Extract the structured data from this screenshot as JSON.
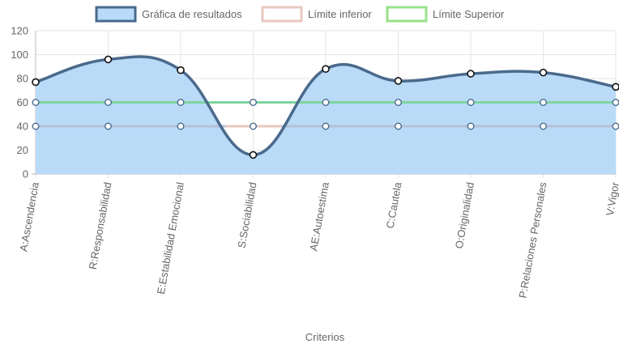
{
  "chart_data": {
    "type": "line",
    "title": "",
    "xlabel": "Criterios",
    "ylabel": "",
    "ylim": [
      0,
      120
    ],
    "yticks": [
      0,
      20,
      40,
      60,
      80,
      100,
      120
    ],
    "grid": true,
    "legend_position": "top-center",
    "categories": [
      "A:Ascendencia",
      "R:Responsabilidad",
      "E:Estabilidad Emocional",
      "S:Sociabilidad",
      "AE:Autoestima",
      "C:Cautela",
      "O:Originalidad",
      "P:Relaciones Personales",
      "V:Vigor"
    ],
    "series": [
      {
        "name": "Gráfica de resultados",
        "values": [
          77,
          96,
          87,
          16,
          88,
          78,
          84,
          85,
          73
        ],
        "line_color": "#4a6a8c",
        "fill_color": "#b9dbf8",
        "legend_fill": "#b9dbf8",
        "legend_border": "#4a6a8c"
      },
      {
        "name": "Límite inferior",
        "values": [
          40,
          40,
          40,
          40,
          40,
          40,
          40,
          40,
          40
        ],
        "line_color": "#b7bfd6",
        "segment_color": "#e8c8c0",
        "legend_border": "#e8c8c0"
      },
      {
        "name": "Límite Superior",
        "values": [
          60,
          60,
          60,
          60,
          60,
          60,
          60,
          60,
          60
        ],
        "line_color": "#7fd4a0",
        "legend_border": "#98e28a"
      }
    ]
  }
}
